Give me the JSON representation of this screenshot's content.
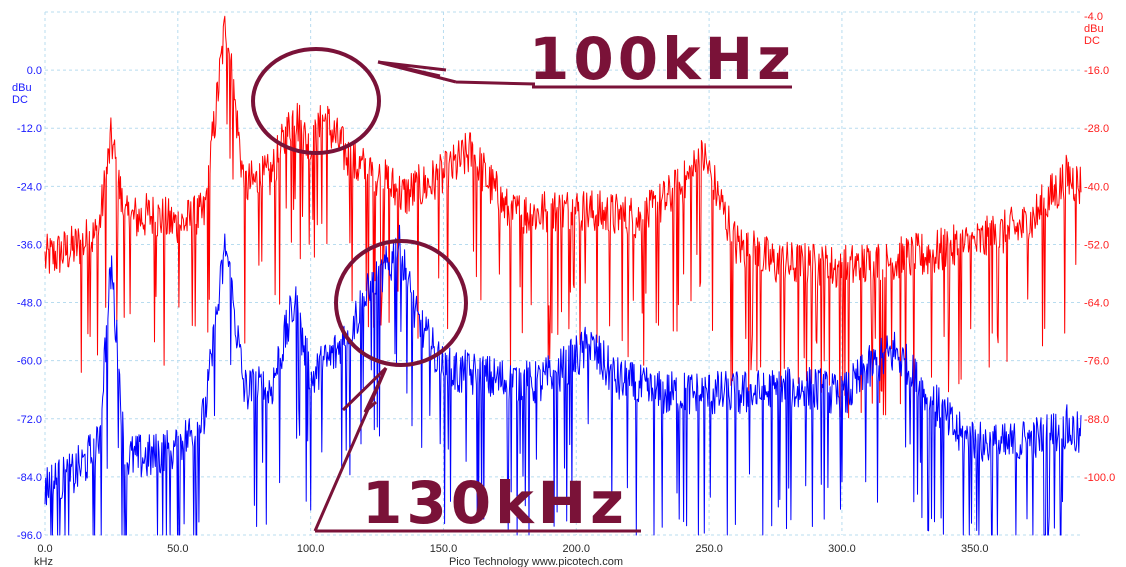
{
  "chart_data": {
    "type": "line",
    "x_unit_label": "kHz",
    "footer": "Pico Technology  www.picotech.com",
    "left_axis": {
      "unit_lines": [
        "dBu",
        "DC"
      ],
      "range": [
        -96.0,
        12.0
      ],
      "ticks": [
        "0.0",
        "-12.0",
        "-24.0",
        "-36.0",
        "-48.0",
        "-60.0",
        "-72.0",
        "-84.0",
        "-96.0"
      ],
      "tick_values": [
        0,
        -12,
        -24,
        -36,
        -48,
        -60,
        -72,
        -84,
        -96
      ]
    },
    "right_axis": {
      "unit_lines": [
        "-4.0",
        "dBu",
        "DC"
      ],
      "range": [
        -112.0,
        -4.0
      ],
      "ticks": [
        "-16.0",
        "-28.0",
        "-40.0",
        "-52.0",
        "-64.0",
        "-76.0",
        "-88.0",
        "-100.0"
      ],
      "tick_values": [
        -16,
        -28,
        -40,
        -52,
        -64,
        -76,
        -88,
        -100
      ]
    },
    "x_axis": {
      "range": [
        0.0,
        390.0
      ],
      "ticks": [
        "0.0",
        "50.0",
        "100.0",
        "150.0",
        "200.0",
        "250.0",
        "300.0",
        "350.0"
      ],
      "tick_values": [
        0,
        50,
        100,
        150,
        200,
        250,
        300,
        350
      ]
    },
    "grid": true,
    "series": [
      {
        "color": "#ff0000",
        "axis": "right",
        "x": [
          0,
          10,
          20,
          25,
          30,
          40,
          50,
          60,
          68,
          75,
          85,
          94,
          100,
          105,
          115,
          125,
          135,
          150,
          160,
          175,
          200,
          225,
          240,
          248,
          260,
          275,
          300,
          325,
          350,
          370,
          385,
          390
        ],
        "y": [
          -55,
          -53,
          -50,
          -30,
          -47,
          -46,
          -48,
          -46,
          -6,
          -40,
          -38,
          -25,
          -33,
          -26,
          -35,
          -38,
          -42,
          -38,
          -33,
          -46,
          -45,
          -47,
          -40,
          -34,
          -52,
          -56,
          -57,
          -55,
          -52,
          -48,
          -38,
          -40
        ]
      },
      {
        "color": "#0000ff",
        "axis": "left",
        "x": [
          0,
          10,
          20,
          25,
          30,
          40,
          50,
          60,
          68,
          75,
          85,
          94,
          100,
          110,
          120,
          130,
          133,
          140,
          150,
          170,
          185,
          195,
          205,
          215,
          230,
          260,
          290,
          300,
          310,
          320,
          330,
          345,
          360,
          375,
          385,
          390
        ],
        "y": [
          -86,
          -84,
          -78,
          -40,
          -80,
          -80,
          -78,
          -72,
          -36,
          -66,
          -66,
          -48,
          -64,
          -58,
          -48,
          -40,
          -36,
          -52,
          -62,
          -64,
          -65,
          -62,
          -57,
          -64,
          -67,
          -67,
          -66,
          -68,
          -62,
          -58,
          -66,
          -76,
          -78,
          -76,
          -74,
          -76
        ]
      }
    ]
  },
  "annotations": {
    "label_100": "100kHz",
    "label_130": "130kHz",
    "color": "#7a1238"
  }
}
